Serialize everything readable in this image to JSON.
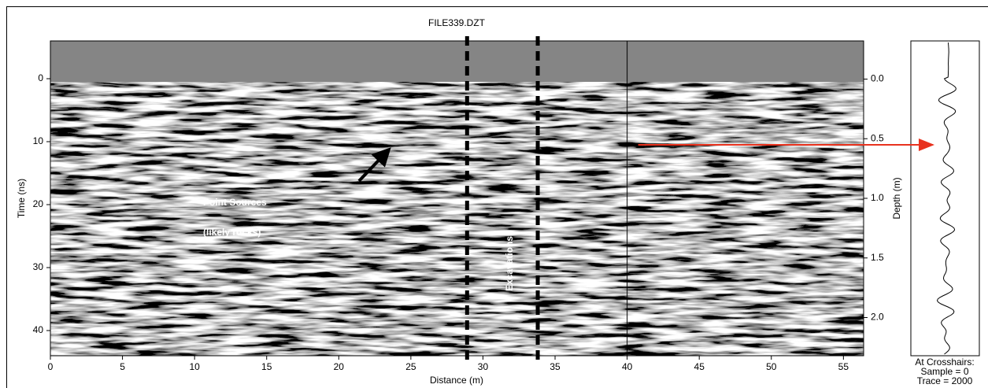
{
  "chart_data": {
    "type": "radargram",
    "title": "FILE339.DZT",
    "x_label": "Distance (m)",
    "y_label": "Time (ns)",
    "y2_label": "Depth (m)",
    "xlim": [
      0,
      56.4
    ],
    "xticks": [
      0,
      5,
      10,
      15,
      20,
      25,
      30,
      35,
      40,
      45,
      50,
      55
    ],
    "ylim": [
      -6,
      44
    ],
    "yticks": [
      0,
      10,
      20,
      30,
      40
    ],
    "y2lim": [
      -0.32,
      2.32
    ],
    "y2ticks": [
      {
        "value": 0,
        "label": "0.0"
      },
      0.5,
      {
        "value": 1,
        "label": "1.0"
      },
      1.5,
      {
        "value": 2,
        "label": "2.0"
      }
    ],
    "markers": [
      28.9,
      33.8
    ],
    "crosshair": {
      "x": 40,
      "time": 10.5
    },
    "annotations": [
      {
        "lines": [
          "Point Sources",
          "(likely rocks)"
        ]
      },
      {
        "lines": [
          "Excavations"
        ]
      }
    ],
    "crosshair_info": [
      "At Crosshairs:",
      "Sample = 0",
      "Trace = 2000"
    ]
  }
}
